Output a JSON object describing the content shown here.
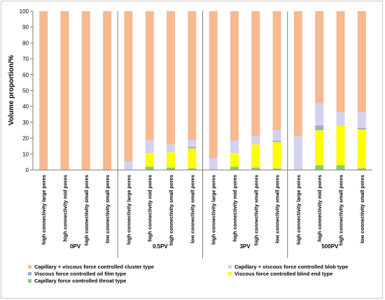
{
  "chart_data": {
    "type": "bar",
    "stacked": true,
    "title": "",
    "xlabel": "",
    "ylabel": "Volume proportion/%",
    "ylim": [
      0,
      100
    ],
    "yticks": [
      "0",
      "10",
      "20",
      "30",
      "40",
      "50",
      "60",
      "70",
      "80",
      "90",
      "100"
    ],
    "grid": false,
    "legend_position": "bottom",
    "groups": [
      "0PV",
      "0.5PV",
      "3PV",
      "500PV"
    ],
    "categories": [
      "high connectivity large pores",
      "high connectivity mid pores",
      "high connectivity small pores",
      "low connectivity small pores",
      "high connectivity large pores",
      "high connectivity mid pores",
      "high connectivity small pores",
      "low connectivity small pores",
      "high connectivity large pores",
      "high connectivity mid pores",
      "high connectivity small pores",
      "low connectivity small pores",
      "high connectivity large pores",
      "high connectivity mid pores",
      "high connectivity small pores",
      "low connectivity small pores"
    ],
    "series": [
      {
        "name": "Capillary force controlled throat type",
        "color": "#8dc878",
        "values": [
          0,
          0,
          0,
          0,
          0,
          2,
          1.5,
          1,
          0,
          2,
          1.5,
          1,
          0,
          3,
          3,
          1
        ]
      },
      {
        "name": "Viscous force controlled blind end type",
        "color": "#ffff00",
        "values": [
          0,
          0,
          0,
          0,
          0,
          8.5,
          9.5,
          12.5,
          0,
          8.5,
          14.5,
          16.5,
          0,
          22,
          25,
          24.5
        ]
      },
      {
        "name": "Viscous force controlled oil film type",
        "color": "#9bb0d2",
        "values": [
          0,
          0,
          0,
          0,
          0,
          0,
          0,
          1,
          0,
          0,
          0,
          0.8,
          0,
          3,
          0,
          1
        ]
      },
      {
        "name": "Capillary + viscous force controlled blob type",
        "color": "#d4d2f2",
        "values": [
          0,
          0,
          0,
          0,
          5.5,
          8.5,
          5,
          4.5,
          7.5,
          8,
          5,
          7,
          21,
          14,
          8.5,
          10
        ]
      },
      {
        "name": "Capillary + viscous force controlled cluster type",
        "color": "#f7b98f",
        "values": [
          100,
          100,
          100,
          100,
          94.5,
          81,
          84,
          81,
          92.5,
          81.5,
          79,
          74.7,
          79,
          58,
          63.5,
          63.5
        ]
      }
    ],
    "legend_order": [
      "Capillary + viscous force controlled cluster type",
      "Capillary + viscous force controlled blob type",
      "Viscous force controlled oil film type",
      "Viscous force controlled blind end type",
      "Capillary force controlled throat type"
    ]
  }
}
